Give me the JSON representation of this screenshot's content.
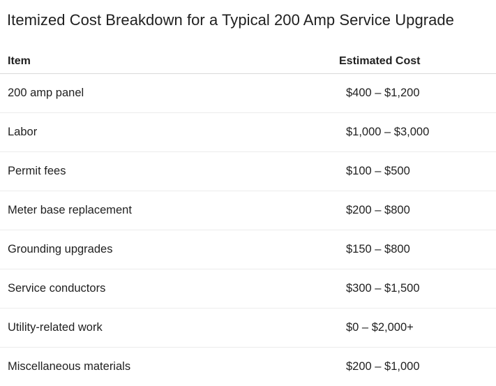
{
  "title": "Itemized Cost Breakdown for a Typical 200 Amp Service Upgrade",
  "table": {
    "headers": {
      "item": "Item",
      "cost": "Estimated Cost"
    },
    "rows": [
      {
        "item": "200 amp panel",
        "cost": "$400 – $1,200"
      },
      {
        "item": "Labor",
        "cost": "$1,000 – $3,000"
      },
      {
        "item": "Permit fees",
        "cost": "$100 – $500"
      },
      {
        "item": "Meter base replacement",
        "cost": "$200 – $800"
      },
      {
        "item": "Grounding upgrades",
        "cost": "$150 – $800"
      },
      {
        "item": "Service conductors",
        "cost": "$300 – $1,500"
      },
      {
        "item": "Utility-related work",
        "cost": "$0 – $2,000+"
      },
      {
        "item": "Miscellaneous materials",
        "cost": "$200 – $1,000"
      }
    ]
  }
}
